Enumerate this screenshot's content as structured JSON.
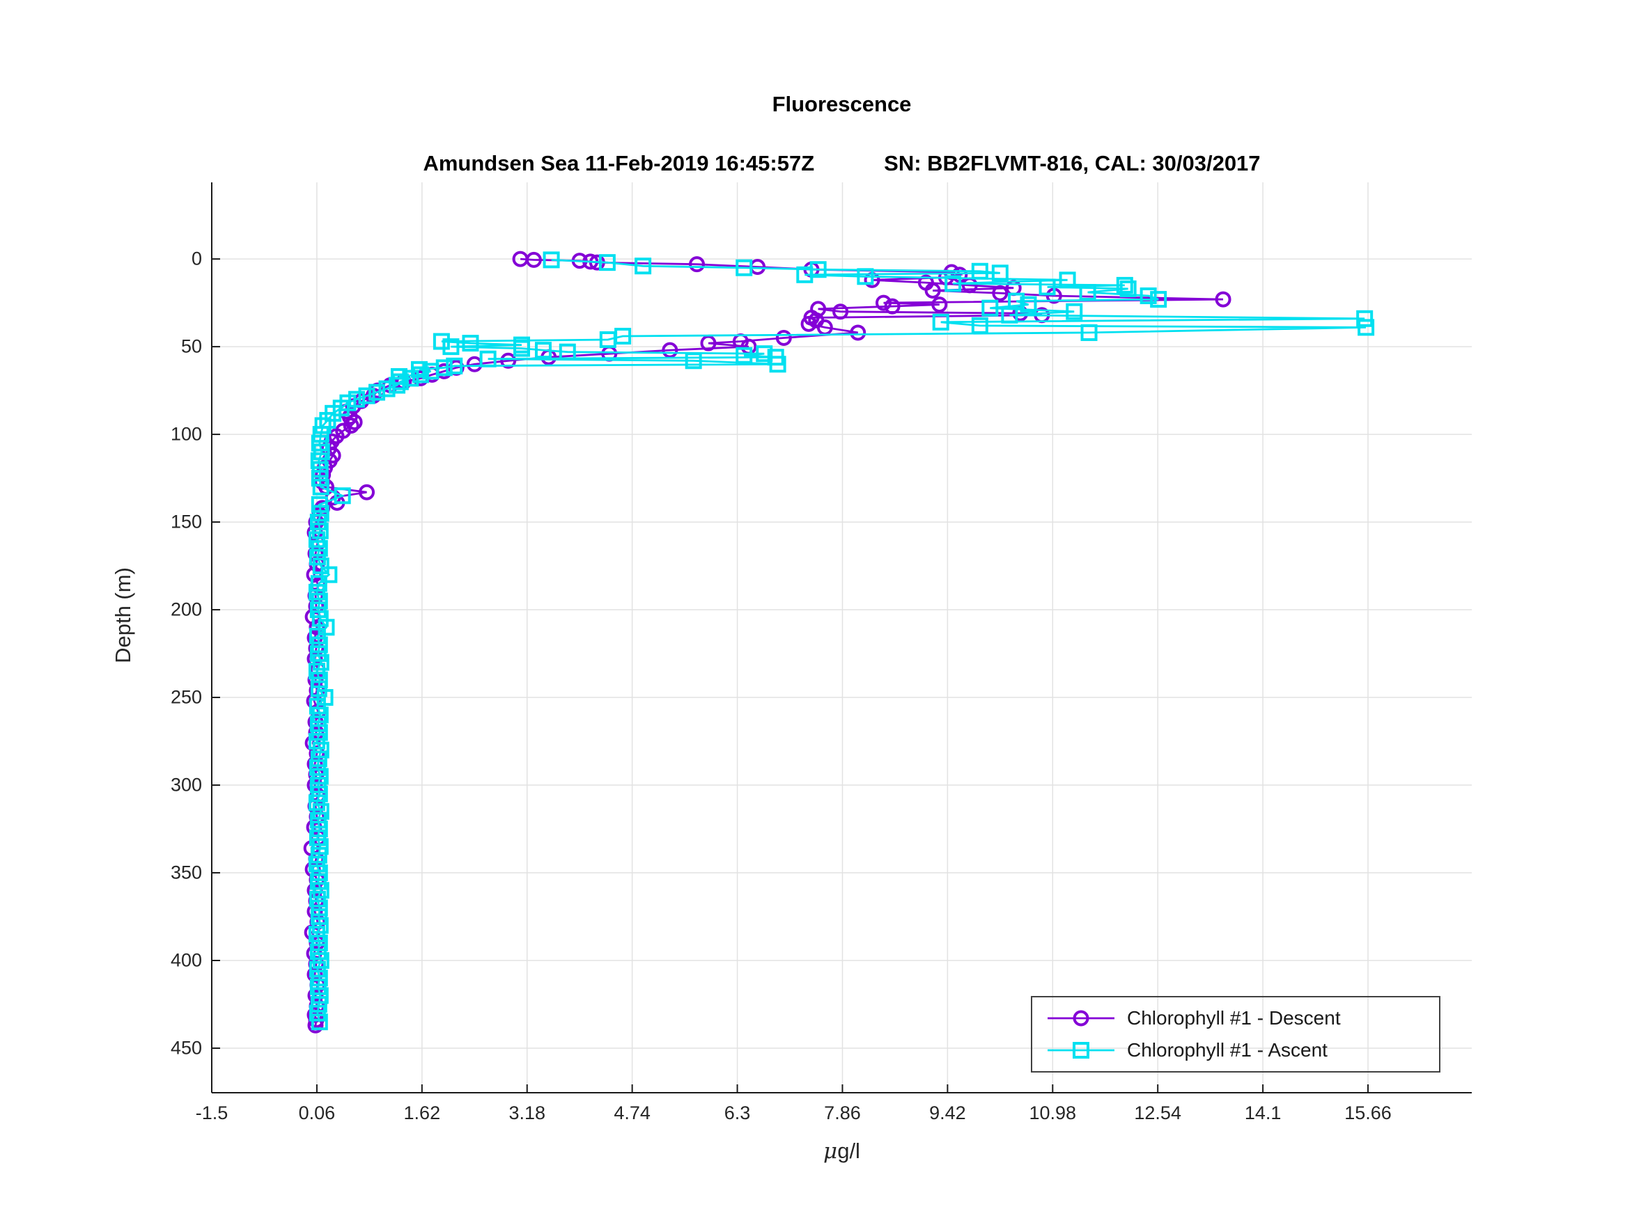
{
  "title": "Fluorescence",
  "subtitle": {
    "left": "Amundsen Sea 11-Feb-2019 16:45:57Z",
    "right": "SN: BB2FLVMT-816, CAL: 30/03/2017"
  },
  "xlabel_parts": {
    "mu": "μ",
    "rest": "g/l"
  },
  "legend": {
    "entries": [
      {
        "label": "Chlorophyll #1 - Descent",
        "color": "#8400D6",
        "marker": "circle"
      },
      {
        "label": "Chlorophyll #1 - Ascent",
        "color": "#00E0F0",
        "marker": "square"
      }
    ]
  },
  "colors": {
    "descent": "#8400D6",
    "ascent": "#00E0F0",
    "grid": "#E2E2E2",
    "axis": "#1a1a1a",
    "tick_text": "#262626"
  },
  "chart_data": {
    "type": "line",
    "title": "Fluorescence",
    "subtitle": "Amundsen Sea 11-Feb-2019 16:45:57Z      SN: BB2FLVMT-816, CAL: 30/03/2017",
    "xlabel": "μg/l",
    "ylabel": "Depth (m)",
    "xlim": [
      -1.5,
      17.2
    ],
    "ylim": [
      -43.7,
      475.4
    ],
    "y_inverted": true,
    "grid": true,
    "legend_position": "lower right",
    "x_ticks": [
      -1.5,
      0.06,
      1.62,
      3.18,
      4.74,
      6.3,
      7.86,
      9.42,
      10.98,
      12.54,
      14.1,
      15.66
    ],
    "x_tick_labels": [
      "-1.5",
      "0.06",
      "1.62",
      "3.18",
      "4.74",
      "6.3",
      "7.86",
      "9.42",
      "10.98",
      "12.54",
      "14.1",
      "15.66"
    ],
    "y_ticks": [
      0,
      50,
      100,
      150,
      200,
      250,
      300,
      350,
      400,
      450
    ],
    "y_tick_labels": [
      "0",
      "50",
      "100",
      "150",
      "200",
      "250",
      "300",
      "350",
      "400",
      "450"
    ],
    "series": [
      {
        "name": "Chlorophyll #1 - Descent",
        "color": "#8400D6",
        "marker": "circle",
        "points": [
          [
            3.08,
            0
          ],
          [
            3.28,
            0.5
          ],
          [
            3.96,
            1
          ],
          [
            4.12,
            1.5
          ],
          [
            4.22,
            2
          ],
          [
            5.7,
            3
          ],
          [
            6.6,
            4.5
          ],
          [
            7.4,
            6
          ],
          [
            9.48,
            7.5
          ],
          [
            9.6,
            9
          ],
          [
            9.4,
            10.5
          ],
          [
            8.3,
            12
          ],
          [
            9.1,
            13.5
          ],
          [
            9.75,
            15
          ],
          [
            10.4,
            16.5
          ],
          [
            9.2,
            18
          ],
          [
            10.2,
            19.5
          ],
          [
            11.0,
            21
          ],
          [
            13.51,
            23
          ],
          [
            8.47,
            25
          ],
          [
            9.3,
            26
          ],
          [
            8.6,
            27
          ],
          [
            7.5,
            28.5
          ],
          [
            7.83,
            30
          ],
          [
            10.5,
            31
          ],
          [
            10.82,
            32
          ],
          [
            7.4,
            33.5
          ],
          [
            7.47,
            35
          ],
          [
            7.36,
            37
          ],
          [
            7.6,
            39
          ],
          [
            8.09,
            42
          ],
          [
            6.99,
            45
          ],
          [
            6.35,
            47
          ],
          [
            5.87,
            48
          ],
          [
            6.47,
            50
          ],
          [
            5.3,
            52
          ],
          [
            4.4,
            54
          ],
          [
            3.5,
            56
          ],
          [
            2.9,
            58
          ],
          [
            2.4,
            60
          ],
          [
            2.13,
            62
          ],
          [
            1.95,
            64
          ],
          [
            1.77,
            66
          ],
          [
            1.6,
            68
          ],
          [
            1.35,
            70
          ],
          [
            1.15,
            72
          ],
          [
            0.96,
            75
          ],
          [
            0.9,
            78
          ],
          [
            0.72,
            81
          ],
          [
            0.6,
            84
          ],
          [
            0.5,
            87
          ],
          [
            0.55,
            90
          ],
          [
            0.62,
            93
          ],
          [
            0.57,
            95
          ],
          [
            0.45,
            98
          ],
          [
            0.35,
            101
          ],
          [
            0.28,
            104
          ],
          [
            0.24,
            108
          ],
          [
            0.3,
            112
          ],
          [
            0.25,
            115
          ],
          [
            0.18,
            119
          ],
          [
            0.15,
            123
          ],
          [
            0.14,
            127
          ],
          [
            0.2,
            130
          ],
          [
            0.8,
            133
          ],
          [
            0.3,
            136
          ],
          [
            0.36,
            139
          ],
          [
            0.14,
            142
          ],
          [
            0.1,
            146
          ],
          [
            0.05,
            150
          ],
          [
            0.03,
            156
          ],
          [
            0.07,
            162
          ],
          [
            0.04,
            168
          ],
          [
            0.06,
            174
          ],
          [
            0.02,
            180
          ],
          [
            0.08,
            186
          ],
          [
            0.04,
            192
          ],
          [
            0.05,
            198
          ],
          [
            0.0,
            204
          ],
          [
            0.06,
            210
          ],
          [
            0.03,
            216
          ],
          [
            0.05,
            222
          ],
          [
            0.03,
            228
          ],
          [
            0.07,
            234
          ],
          [
            0.04,
            240
          ],
          [
            0.06,
            246
          ],
          [
            0.02,
            252
          ],
          [
            0.08,
            258
          ],
          [
            0.04,
            264
          ],
          [
            0.05,
            270
          ],
          [
            0.0,
            276
          ],
          [
            0.06,
            282
          ],
          [
            0.03,
            288
          ],
          [
            0.05,
            294
          ],
          [
            0.03,
            300
          ],
          [
            0.07,
            306
          ],
          [
            0.04,
            312
          ],
          [
            0.06,
            318
          ],
          [
            0.02,
            324
          ],
          [
            0.08,
            330
          ],
          [
            -0.02,
            336
          ],
          [
            0.05,
            342
          ],
          [
            0.0,
            348
          ],
          [
            0.06,
            354
          ],
          [
            0.03,
            360
          ],
          [
            0.05,
            366
          ],
          [
            0.03,
            372
          ],
          [
            0.07,
            378
          ],
          [
            -0.01,
            384
          ],
          [
            0.06,
            390
          ],
          [
            0.02,
            396
          ],
          [
            0.05,
            402
          ],
          [
            0.03,
            408
          ],
          [
            0.07,
            414
          ],
          [
            0.04,
            420
          ],
          [
            0.06,
            426
          ],
          [
            0.03,
            431
          ],
          [
            0.05,
            434
          ],
          [
            0.04,
            437
          ]
        ]
      },
      {
        "name": "Chlorophyll #1 - Ascent",
        "color": "#00E0F0",
        "marker": "square",
        "points": [
          [
            3.54,
            0.5
          ],
          [
            4.37,
            2
          ],
          [
            4.9,
            4
          ],
          [
            6.4,
            5
          ],
          [
            7.5,
            6
          ],
          [
            9.9,
            7
          ],
          [
            10.2,
            8
          ],
          [
            7.3,
            9
          ],
          [
            8.2,
            10
          ],
          [
            11.2,
            12
          ],
          [
            9.5,
            14
          ],
          [
            12.05,
            15
          ],
          [
            10.9,
            16
          ],
          [
            12.1,
            17
          ],
          [
            11.5,
            19
          ],
          [
            12.4,
            21
          ],
          [
            12.55,
            23
          ],
          [
            10.44,
            24
          ],
          [
            10.62,
            26
          ],
          [
            10.05,
            28
          ],
          [
            11.3,
            30
          ],
          [
            10.34,
            32
          ],
          [
            15.61,
            34
          ],
          [
            9.32,
            36
          ],
          [
            9.9,
            38
          ],
          [
            15.63,
            39
          ],
          [
            11.52,
            42
          ],
          [
            4.6,
            44
          ],
          [
            4.38,
            46
          ],
          [
            1.91,
            47
          ],
          [
            2.34,
            48
          ],
          [
            3.1,
            49
          ],
          [
            2.05,
            50
          ],
          [
            3.1,
            51
          ],
          [
            3.42,
            52
          ],
          [
            3.78,
            53
          ],
          [
            6.7,
            54
          ],
          [
            6.4,
            55
          ],
          [
            6.87,
            56
          ],
          [
            2.6,
            57
          ],
          [
            5.65,
            58
          ],
          [
            6.9,
            60
          ],
          [
            2.1,
            61
          ],
          [
            1.95,
            62
          ],
          [
            1.58,
            63
          ],
          [
            1.75,
            64
          ],
          [
            1.6,
            66
          ],
          [
            1.28,
            67
          ],
          [
            1.45,
            68
          ],
          [
            1.3,
            70
          ],
          [
            1.25,
            72
          ],
          [
            1.1,
            74
          ],
          [
            0.95,
            76
          ],
          [
            0.8,
            78
          ],
          [
            0.65,
            80
          ],
          [
            0.52,
            82
          ],
          [
            0.42,
            85
          ],
          [
            0.3,
            88
          ],
          [
            0.22,
            92
          ],
          [
            0.15,
            95
          ],
          [
            0.12,
            100
          ],
          [
            0.1,
            105
          ],
          [
            0.13,
            110
          ],
          [
            0.09,
            115
          ],
          [
            0.11,
            120
          ],
          [
            0.1,
            125
          ],
          [
            0.12,
            130
          ],
          [
            0.44,
            135
          ],
          [
            0.1,
            140
          ],
          [
            0.12,
            145
          ],
          [
            0.08,
            150
          ],
          [
            0.11,
            155
          ],
          [
            0.06,
            160
          ],
          [
            0.1,
            165
          ],
          [
            0.07,
            170
          ],
          [
            0.12,
            175
          ],
          [
            0.24,
            180
          ],
          [
            0.09,
            185
          ],
          [
            0.06,
            190
          ],
          [
            0.1,
            195
          ],
          [
            0.08,
            200
          ],
          [
            0.11,
            205
          ],
          [
            0.2,
            210
          ],
          [
            0.07,
            215
          ],
          [
            0.1,
            220
          ],
          [
            0.08,
            225
          ],
          [
            0.12,
            230
          ],
          [
            0.06,
            235
          ],
          [
            0.1,
            240
          ],
          [
            0.09,
            245
          ],
          [
            0.18,
            250
          ],
          [
            0.07,
            255
          ],
          [
            0.11,
            260
          ],
          [
            0.08,
            265
          ],
          [
            0.1,
            270
          ],
          [
            0.06,
            275
          ],
          [
            0.12,
            280
          ],
          [
            0.09,
            285
          ],
          [
            0.07,
            290
          ],
          [
            0.11,
            295
          ],
          [
            0.08,
            300
          ],
          [
            0.1,
            305
          ],
          [
            0.06,
            310
          ],
          [
            0.12,
            315
          ],
          [
            0.08,
            320
          ],
          [
            0.1,
            325
          ],
          [
            0.07,
            330
          ],
          [
            0.11,
            335
          ],
          [
            0.09,
            340
          ],
          [
            0.06,
            345
          ],
          [
            0.1,
            350
          ],
          [
            0.08,
            355
          ],
          [
            0.12,
            360
          ],
          [
            0.07,
            365
          ],
          [
            0.1,
            370
          ],
          [
            0.09,
            375
          ],
          [
            0.11,
            380
          ],
          [
            0.06,
            385
          ],
          [
            0.1,
            390
          ],
          [
            0.08,
            395
          ],
          [
            0.12,
            400
          ],
          [
            0.07,
            405
          ],
          [
            0.1,
            410
          ],
          [
            0.08,
            415
          ],
          [
            0.11,
            420
          ],
          [
            0.09,
            425
          ],
          [
            0.07,
            430
          ],
          [
            0.1,
            435
          ]
        ]
      }
    ]
  }
}
